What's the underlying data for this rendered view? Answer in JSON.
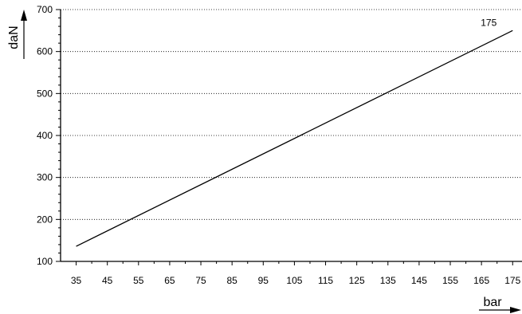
{
  "chart_data": {
    "type": "line",
    "xlabel": "bar",
    "ylabel": "daN",
    "xlim": [
      30,
      178
    ],
    "ylim": [
      100,
      700
    ],
    "x_ticks": [
      35,
      45,
      55,
      65,
      75,
      85,
      95,
      105,
      115,
      125,
      135,
      145,
      155,
      165,
      175
    ],
    "y_ticks": [
      100,
      200,
      300,
      400,
      500,
      600,
      700
    ],
    "grid": "horizontal-dotted",
    "series": [
      {
        "name": "175",
        "x": [
          35,
          175
        ],
        "y": [
          136,
          650
        ]
      }
    ]
  }
}
